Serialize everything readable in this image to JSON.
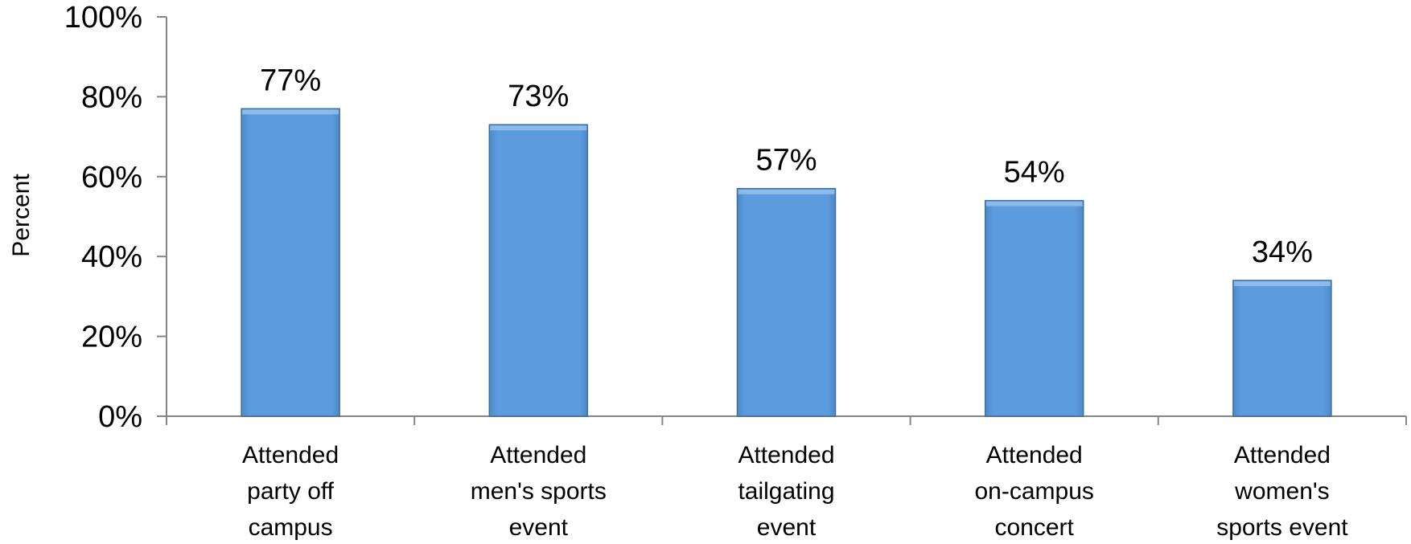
{
  "chart_data": {
    "type": "bar",
    "categories": [
      [
        "Attended",
        "party off",
        "campus"
      ],
      [
        "Attended",
        "men's sports",
        "event"
      ],
      [
        "Attended",
        "tailgating",
        "event"
      ],
      [
        "Attended",
        "on-campus",
        "concert"
      ],
      [
        "Attended",
        "women's",
        "sports event"
      ]
    ],
    "values": [
      77,
      73,
      57,
      54,
      34
    ],
    "data_labels": [
      "77%",
      "73%",
      "57%",
      "54%",
      "34%"
    ],
    "ylabel": "Percent",
    "ylim": [
      0,
      100
    ],
    "yticks": [
      0,
      20,
      40,
      60,
      80,
      100
    ],
    "ytick_labels": [
      "0%",
      "20%",
      "40%",
      "60%",
      "80%",
      "100%"
    ],
    "grid": false,
    "bar_color": "#5B9BD5",
    "bar_edge_color": "#3A6FA0"
  }
}
